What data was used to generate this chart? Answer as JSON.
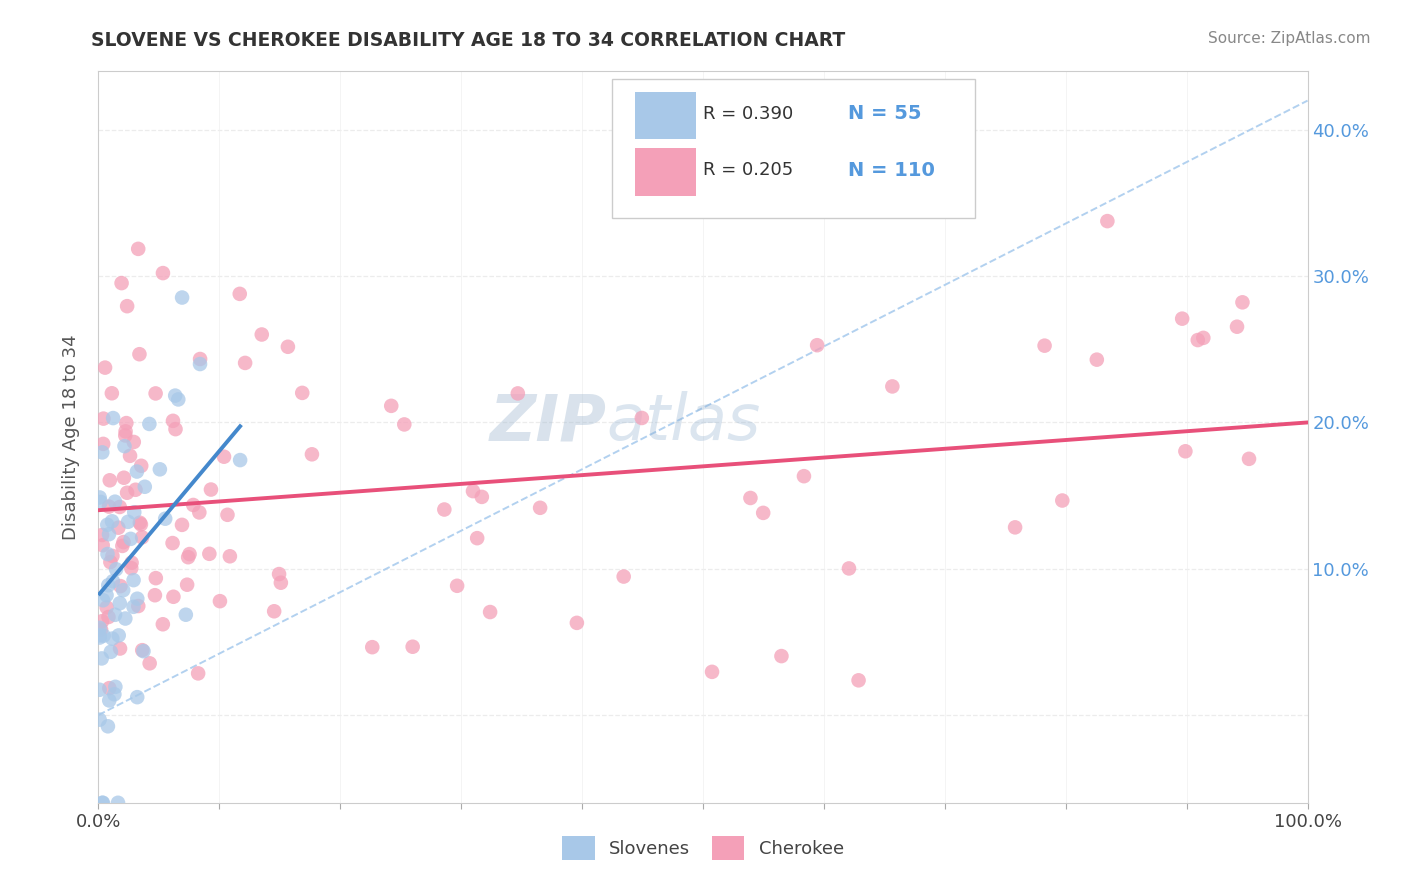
{
  "title": "SLOVENE VS CHEROKEE DISABILITY AGE 18 TO 34 CORRELATION CHART",
  "source": "Source: ZipAtlas.com",
  "ylabel": "Disability Age 18 to 34",
  "xlim": [
    0.0,
    1.0
  ],
  "ylim": [
    -0.06,
    0.44
  ],
  "x_ticks": [
    0.0,
    0.1,
    0.2,
    0.3,
    0.4,
    0.5,
    0.6,
    0.7,
    0.8,
    0.9,
    1.0
  ],
  "y_ticks": [
    0.0,
    0.1,
    0.2,
    0.3,
    0.4
  ],
  "y_tick_labels_right": [
    "",
    "10.0%",
    "20.0%",
    "30.0%",
    "40.0%"
  ],
  "legend_r_slovene": "R = 0.390",
  "legend_n_slovene": "N = 55",
  "legend_r_cherokee": "R = 0.205",
  "legend_n_cherokee": "N = 110",
  "slovene_color": "#a8c8e8",
  "cherokee_color": "#f4a0b8",
  "trend_slovene_color": "#4488cc",
  "trend_cherokee_color": "#e8507a",
  "dashed_line_color": "#aaccee",
  "grid_color": "#e8e8e8",
  "title_color": "#333333",
  "axis_label_color": "#555555",
  "tick_label_color_right": "#5599dd",
  "watermark_color": "#c8d8e8",
  "slovene_seed": 12,
  "cherokee_seed": 77
}
